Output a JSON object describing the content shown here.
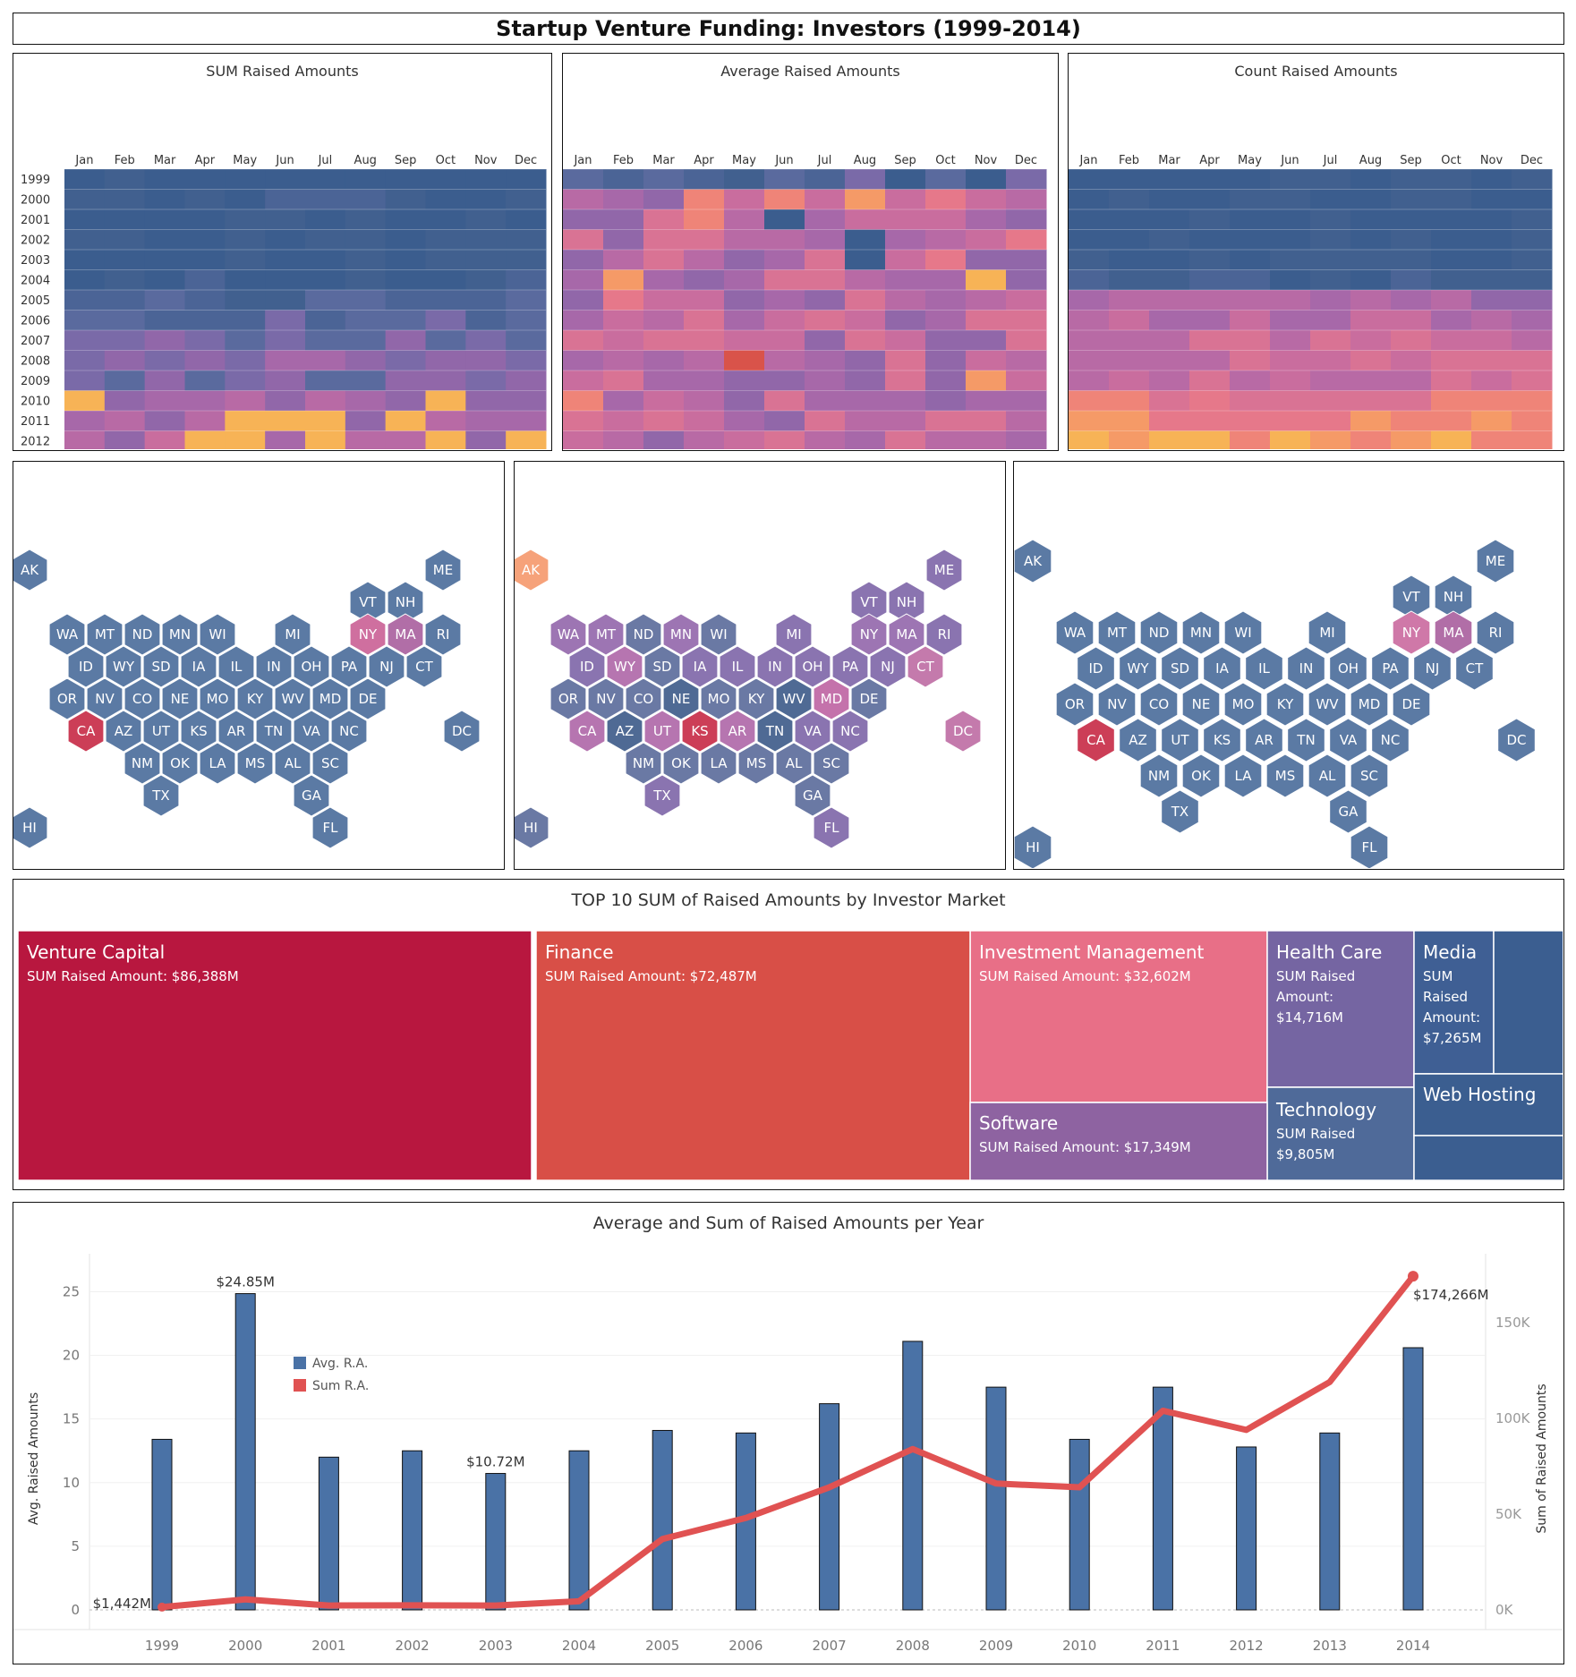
{
  "title": "Startup Venture Funding: Investors (1999-2014)",
  "heatmaps": [
    {
      "title": "SUM Raised Amounts",
      "hot": [
        [
          15,
          3,
          10
        ],
        [
          14,
          3,
          14
        ],
        [
          13,
          2,
          8
        ],
        [
          12,
          0,
          6
        ]
      ],
      "warm": [
        [
          11,
          0,
          3
        ],
        [
          11,
          9,
          3
        ],
        [
          12,
          4,
          3
        ],
        [
          12,
          5,
          3
        ],
        [
          12,
          6,
          3
        ],
        [
          12,
          8,
          3
        ],
        [
          13,
          3,
          3
        ],
        [
          13,
          4,
          3
        ],
        [
          13,
          6,
          3
        ],
        [
          13,
          9,
          3
        ],
        [
          13,
          11,
          3
        ],
        [
          14,
          0,
          3
        ],
        [
          14,
          1,
          3
        ],
        [
          14,
          2,
          3
        ],
        [
          14,
          4,
          3
        ],
        [
          14,
          5,
          3
        ],
        [
          14,
          6,
          3
        ],
        [
          14,
          7,
          3
        ],
        [
          14,
          8,
          3
        ],
        [
          14,
          9,
          3
        ],
        [
          14,
          10,
          3
        ]
      ],
      "cool": [
        [
          15,
          11,
          3
        ]
      ],
      "base": {
        "0": 0,
        "1": 1,
        "2": 0,
        "3": 0,
        "4": 0,
        "5": 1,
        "6": 2,
        "7": 3,
        "8": 4,
        "9": 5,
        "10": 4,
        "11": 6,
        "12": 6,
        "13": 6,
        "14": 7,
        "15": 8
      }
    },
    {
      "title": "Average Raised Amounts",
      "hot": [
        [
          9,
          4,
          14
        ],
        [
          10,
          10,
          12
        ],
        [
          14,
          2,
          8
        ]
      ],
      "warm": [
        [
          1,
          3,
          9
        ],
        [
          1,
          5,
          9
        ],
        [
          1,
          7,
          10
        ],
        [
          1,
          9,
          8
        ],
        [
          2,
          3,
          9
        ],
        [
          5,
          1,
          10
        ],
        [
          6,
          1,
          8
        ],
        [
          11,
          0,
          9
        ],
        [
          15,
          3,
          10
        ],
        [
          15,
          11,
          9
        ],
        [
          3,
          11,
          8
        ],
        [
          4,
          9,
          8
        ],
        [
          5,
          10,
          7
        ]
      ],
      "cool": [
        [
          2,
          5,
          0
        ],
        [
          3,
          7,
          0
        ],
        [
          4,
          7,
          0
        ]
      ],
      "base": "mid"
    },
    {
      "title": "Count Raised Amounts",
      "hot": [],
      "warm": [],
      "cool": [
        [
          15,
          11,
          2
        ]
      ],
      "base": "count"
    }
  ],
  "months": [
    "Jan",
    "Feb",
    "Mar",
    "Apr",
    "May",
    "Jun",
    "Jul",
    "Aug",
    "Sep",
    "Oct",
    "Nov",
    "Dec"
  ],
  "years": [
    "1999",
    "2000",
    "2001",
    "2002",
    "2003",
    "2004",
    "2005",
    "2006",
    "2007",
    "2008",
    "2009",
    "2010",
    "2011",
    "2012",
    "2013",
    "2014"
  ],
  "hexmaps": [
    {
      "name": "sum",
      "colors": {
        "CA": "#cc3e57",
        "NY": "#cf6f9f",
        "MA": "#b16ea7"
      },
      "default": "#5b7aa4"
    },
    {
      "name": "avg",
      "colors": {
        "AK": "#f6a27a",
        "KS": "#cc3e57",
        "MD": "#c472ab",
        "CT": "#c47aac",
        "DC": "#c47aac",
        "WY": "#b675b0",
        "UT": "#b675b0",
        "AR": "#b675b0",
        "CA": "#b675b0",
        "NY": "#9d75b3",
        "MA": "#9d75b3",
        "WA": "#9d75b3",
        "MT": "#9d75b3",
        "MN": "#9d75b3",
        "FL": "#8a74b0",
        "TX": "#8a74b0",
        "VA": "#8a74b0",
        "NJ": "#8a74b0",
        "PA": "#8a74b0",
        "IL": "#8a74b0",
        "IN": "#8a74b0",
        "NC": "#8a74b0",
        "RI": "#8a74b0",
        "ID": "#8a74b0",
        "MI": "#8a74b0",
        "IA": "#8a74b0",
        "ME": "#8a74b0",
        "NH": "#8a74b0",
        "VT": "#8a74b0",
        "OH": "#8a74b0",
        "NE": "#4f6a94",
        "WV": "#4f6a94",
        "AZ": "#4f6a94",
        "TN": "#4f6a94"
      },
      "default": "#6a79a4"
    },
    {
      "name": "count",
      "colors": {
        "CA": "#cc3e57",
        "NY": "#cf78a8",
        "MA": "#b16ea7"
      },
      "default": "#5b7aa4"
    }
  ],
  "states": [
    [
      "AK",
      0,
      1
    ],
    [
      "ME",
      11,
      1
    ],
    [
      "VT",
      9,
      2
    ],
    [
      "NH",
      10,
      2
    ],
    [
      "WA",
      1,
      3
    ],
    [
      "MT",
      2,
      3
    ],
    [
      "ND",
      3,
      3
    ],
    [
      "MN",
      4,
      3
    ],
    [
      "WI",
      5,
      3
    ],
    [
      "MI",
      7,
      3
    ],
    [
      "NY",
      9,
      3
    ],
    [
      "MA",
      10,
      3
    ],
    [
      "RI",
      11,
      3
    ],
    [
      "ID",
      1.5,
      4
    ],
    [
      "WY",
      2.5,
      4
    ],
    [
      "SD",
      3.5,
      4
    ],
    [
      "IA",
      4.5,
      4
    ],
    [
      "IL",
      5.5,
      4
    ],
    [
      "IN",
      6.5,
      4
    ],
    [
      "OH",
      7.5,
      4
    ],
    [
      "PA",
      8.5,
      4
    ],
    [
      "NJ",
      9.5,
      4
    ],
    [
      "CT",
      10.5,
      4
    ],
    [
      "OR",
      1,
      5
    ],
    [
      "NV",
      2,
      5
    ],
    [
      "CO",
      3,
      5
    ],
    [
      "NE",
      4,
      5
    ],
    [
      "MO",
      5,
      5
    ],
    [
      "KY",
      6,
      5
    ],
    [
      "WV",
      7,
      5
    ],
    [
      "MD",
      8,
      5
    ],
    [
      "DE",
      9,
      5
    ],
    [
      "CA",
      1.5,
      6
    ],
    [
      "AZ",
      2.5,
      6
    ],
    [
      "UT",
      3.5,
      6
    ],
    [
      "KS",
      4.5,
      6
    ],
    [
      "AR",
      5.5,
      6
    ],
    [
      "TN",
      6.5,
      6
    ],
    [
      "VA",
      7.5,
      6
    ],
    [
      "NC",
      8.5,
      6
    ],
    [
      "DC",
      11.5,
      6
    ],
    [
      "NM",
      3,
      7
    ],
    [
      "OK",
      4,
      7
    ],
    [
      "LA",
      5,
      7
    ],
    [
      "MS",
      6,
      7
    ],
    [
      "AL",
      7,
      7
    ],
    [
      "SC",
      8,
      7
    ],
    [
      "TX",
      3.5,
      8
    ],
    [
      "GA",
      7.5,
      8
    ],
    [
      "HI",
      0,
      9
    ],
    [
      "FL",
      8,
      9
    ]
  ],
  "treemap": {
    "title": "TOP 10 SUM of Raised Amounts by Investor Market",
    "label_prefix": "SUM Raised Amount:",
    "tiles": [
      {
        "name": "Venture Capital",
        "value": "$86,388M",
        "color": "#b8173f"
      },
      {
        "name": "Finance",
        "value": "$72,487M",
        "color": "#d84f47"
      },
      {
        "name": "Investment Management",
        "value": "$32,602M",
        "color": "#e86f87"
      },
      {
        "name": "Software",
        "value": "$17,349M",
        "color": "#8e63a1"
      },
      {
        "name": "Health Care",
        "value": "$14,716M",
        "color": "#7565a2"
      },
      {
        "name": "Technology",
        "value": "$9,805M",
        "color": "#4f6a99"
      },
      {
        "name": "Media",
        "value": "$7,265M",
        "color": "#3f5f94"
      },
      {
        "name": "Web Hosting",
        "value": "",
        "color": "#3b5e90"
      },
      {
        "name": "",
        "value": "",
        "color": "#3b5e90"
      },
      {
        "name": "",
        "value": "",
        "color": "#3b5e90"
      }
    ]
  },
  "chart_data": {
    "type": "bar",
    "title": "Average and Sum of Raised Amounts per Year",
    "categories": [
      "1999",
      "2000",
      "2001",
      "2002",
      "2003",
      "2004",
      "2005",
      "2006",
      "2007",
      "2008",
      "2009",
      "2010",
      "2011",
      "2012",
      "2013",
      "2014"
    ],
    "series": [
      {
        "name": "Avg. R.A.",
        "type": "bar",
        "axis": "left",
        "color": "#4a72a6",
        "values": [
          13.4,
          24.85,
          12.0,
          12.5,
          10.72,
          12.5,
          14.1,
          13.9,
          16.2,
          21.1,
          17.5,
          13.4,
          17.5,
          12.8,
          13.9,
          20.6
        ]
      },
      {
        "name": "Sum R.A.",
        "type": "line",
        "axis": "right",
        "color": "#e05252",
        "values": [
          1442,
          5500,
          2300,
          2400,
          2300,
          4500,
          37000,
          48000,
          64000,
          84000,
          66000,
          64000,
          104000,
          94000,
          119000,
          174266
        ]
      }
    ],
    "ylabel": "Avg. Raised Amounts",
    "y2label": "Sum of Raised Amounts",
    "ylim": [
      0,
      27
    ],
    "y2lim": [
      0,
      186000
    ],
    "yticks": [
      "0",
      "5",
      "10",
      "15",
      "20",
      "25"
    ],
    "y2ticks": [
      "0K",
      "50K",
      "100K",
      "150K"
    ],
    "annotations": [
      "$24.85M",
      "$10.72M",
      "$1,442M",
      "$174,266M"
    ]
  }
}
